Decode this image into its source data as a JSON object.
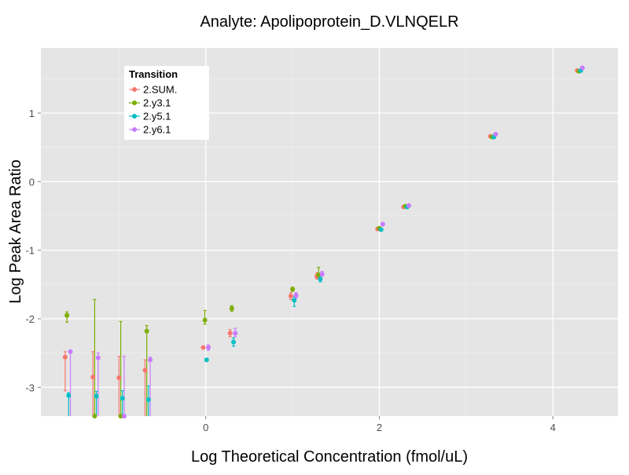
{
  "chart_data": {
    "type": "scatter",
    "title": "Analyte: Apolipoprotein_D.VLNQELR",
    "xlabel": "Log Theoretical Concentration (fmol/uL)",
    "ylabel": "Log Peak Area Ratio",
    "xlim": [
      -1.9,
      4.75
    ],
    "ylim": [
      -3.42,
      1.95
    ],
    "x_ticks": [
      0,
      2,
      4
    ],
    "x_tick_labels": [
      "0",
      "2",
      "4"
    ],
    "y_ticks": [
      -3,
      -2,
      -1,
      0,
      1
    ],
    "y_tick_labels": [
      "-3",
      "-2",
      "-1",
      "0",
      "1"
    ],
    "grid": true,
    "legend": {
      "title": "Transition",
      "position": "top-left-inside"
    },
    "series": [
      {
        "name": "2.SUM.",
        "color": "#F8766D",
        "points": [
          {
            "x": -1.62,
            "y": -2.56,
            "lo": -3.05,
            "hi": -2.48
          },
          {
            "x": -1.3,
            "y": -2.85,
            "lo": -3.42,
            "hi": -2.48
          },
          {
            "x": -1.0,
            "y": -2.86,
            "lo": -3.42,
            "hi": -2.55
          },
          {
            "x": -0.7,
            "y": -2.75,
            "lo": -3.42,
            "hi": -2.6
          },
          {
            "x": -0.03,
            "y": -2.42,
            "lo": -2.42,
            "hi": -2.42
          },
          {
            "x": 0.28,
            "y": -2.21,
            "lo": -2.26,
            "hi": -2.16
          },
          {
            "x": 0.98,
            "y": -1.67,
            "lo": -1.72,
            "hi": -1.62
          },
          {
            "x": 1.28,
            "y": -1.38,
            "lo": -1.42,
            "hi": -1.33
          },
          {
            "x": 1.98,
            "y": -0.69,
            "lo": -0.71,
            "hi": -0.67
          },
          {
            "x": 2.28,
            "y": -0.37,
            "lo": -0.39,
            "hi": -0.35
          },
          {
            "x": 3.28,
            "y": 0.66,
            "lo": 0.64,
            "hi": 0.68
          },
          {
            "x": 4.28,
            "y": 1.62,
            "lo": 1.6,
            "hi": 1.64
          }
        ]
      },
      {
        "name": "2.y3.1",
        "color": "#7CAE00",
        "points": [
          {
            "x": -1.6,
            "y": -1.95,
            "lo": -2.05,
            "hi": -1.9
          },
          {
            "x": -1.28,
            "y": -3.42,
            "lo": -3.42,
            "hi": -1.72
          },
          {
            "x": -0.98,
            "y": -3.42,
            "lo": -3.42,
            "hi": -2.04
          },
          {
            "x": -0.68,
            "y": -2.18,
            "lo": -3.42,
            "hi": -2.1
          },
          {
            "x": -0.01,
            "y": -2.02,
            "lo": -2.08,
            "hi": -1.88
          },
          {
            "x": 0.3,
            "y": -1.85,
            "lo": -1.89,
            "hi": -1.81
          },
          {
            "x": 1.0,
            "y": -1.57,
            "lo": -1.6,
            "hi": -1.54
          },
          {
            "x": 1.3,
            "y": -1.36,
            "lo": -1.4,
            "hi": -1.25
          },
          {
            "x": 2.0,
            "y": -0.68,
            "lo": -0.7,
            "hi": -0.66
          },
          {
            "x": 2.3,
            "y": -0.36,
            "lo": -0.38,
            "hi": -0.34
          },
          {
            "x": 3.3,
            "y": 0.65,
            "lo": 0.63,
            "hi": 0.67
          },
          {
            "x": 4.3,
            "y": 1.61,
            "lo": 1.59,
            "hi": 1.63
          }
        ]
      },
      {
        "name": "2.y5.1",
        "color": "#00BFC4",
        "points": [
          {
            "x": -1.58,
            "y": -3.12,
            "lo": -3.42,
            "hi": -3.08
          },
          {
            "x": -1.26,
            "y": -3.13,
            "lo": -3.42,
            "hi": -3.06
          },
          {
            "x": -0.96,
            "y": -3.16,
            "lo": -3.42,
            "hi": -3.05
          },
          {
            "x": -0.66,
            "y": -3.18,
            "lo": -3.42,
            "hi": -2.98
          },
          {
            "x": 0.01,
            "y": -2.6,
            "lo": -2.6,
            "hi": -2.6
          },
          {
            "x": 0.32,
            "y": -2.34,
            "lo": -2.4,
            "hi": -2.28
          },
          {
            "x": 1.02,
            "y": -1.73,
            "lo": -1.82,
            "hi": -1.68
          },
          {
            "x": 1.32,
            "y": -1.42,
            "lo": -1.46,
            "hi": -1.38
          },
          {
            "x": 2.02,
            "y": -0.7,
            "lo": -0.72,
            "hi": -0.68
          },
          {
            "x": 2.32,
            "y": -0.37,
            "lo": -0.39,
            "hi": -0.35
          },
          {
            "x": 3.32,
            "y": 0.65,
            "lo": 0.63,
            "hi": 0.67
          },
          {
            "x": 4.32,
            "y": 1.62,
            "lo": 1.6,
            "hi": 1.64
          }
        ]
      },
      {
        "name": "2.y6.1",
        "color": "#C77CFF",
        "points": [
          {
            "x": -1.56,
            "y": -2.48,
            "lo": -3.42,
            "hi": -2.46
          },
          {
            "x": -1.24,
            "y": -2.57,
            "lo": -3.42,
            "hi": -2.5
          },
          {
            "x": -0.94,
            "y": -3.42,
            "lo": -3.42,
            "hi": -2.55
          },
          {
            "x": -0.64,
            "y": -2.6,
            "lo": -3.42,
            "hi": -2.56
          },
          {
            "x": 0.03,
            "y": -2.42,
            "lo": -2.46,
            "hi": -2.38
          },
          {
            "x": 0.34,
            "y": -2.21,
            "lo": -2.26,
            "hi": -2.14
          },
          {
            "x": 1.04,
            "y": -1.66,
            "lo": -1.7,
            "hi": -1.62
          },
          {
            "x": 1.34,
            "y": -1.35,
            "lo": -1.38,
            "hi": -1.31
          },
          {
            "x": 2.04,
            "y": -0.62,
            "lo": -0.64,
            "hi": -0.6
          },
          {
            "x": 2.34,
            "y": -0.35,
            "lo": -0.37,
            "hi": -0.33
          },
          {
            "x": 3.34,
            "y": 0.69,
            "lo": 0.67,
            "hi": 0.71
          },
          {
            "x": 4.34,
            "y": 1.66,
            "lo": 1.64,
            "hi": 1.68
          }
        ]
      }
    ]
  }
}
